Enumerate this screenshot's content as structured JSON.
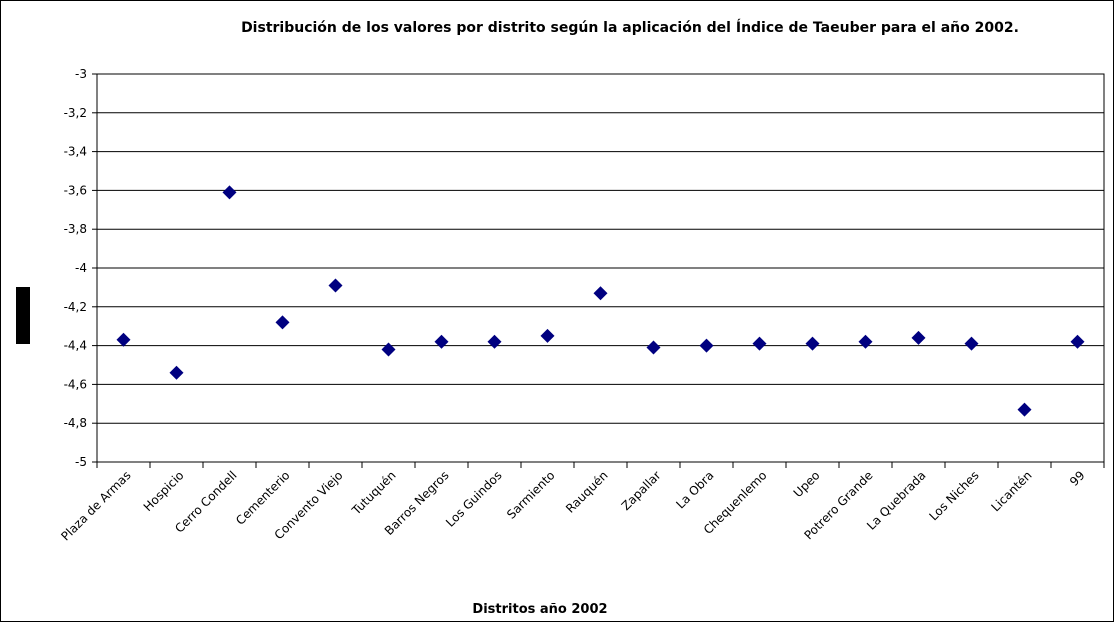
{
  "chart_data": {
    "type": "scatter",
    "title": "Distribución de los valores por distrito según la aplicación del Índice de Taeuber para el año 2002.",
    "xlabel": "Distritos año 2002",
    "categories": [
      "Plaza de Armas",
      "Hospicio",
      "Cerro Condell",
      "Cementerio",
      "Convento Viejo",
      "Tutuquén",
      "Barros Negros",
      "Los Guindos",
      "Sarmiento",
      "Rauquén",
      "Zapallar",
      "La Obra",
      "Chequenlemo",
      "Upeo",
      "Potrero Grande",
      "La Quebrada",
      "Los Niches",
      "Licantén",
      "99"
    ],
    "values": [
      -4.37,
      -4.54,
      -3.61,
      -4.28,
      -4.09,
      -4.42,
      -4.38,
      -4.38,
      -4.35,
      -4.13,
      -4.41,
      -4.4,
      -4.39,
      -4.39,
      -4.38,
      -4.36,
      -4.39,
      -4.73,
      -4.38
    ],
    "color": "#000080",
    "ylim": [
      -5,
      -3
    ],
    "yticks": [
      -5,
      {
        "value": -4.8,
        "label": "-4,8"
      },
      {
        "value": -4.6,
        "label": "-4,6"
      },
      {
        "value": -4.4,
        "label": "-4,4"
      },
      {
        "value": -4.2,
        "label": "-4,2"
      },
      -4,
      {
        "value": -3.8,
        "label": "-3,8"
      },
      {
        "value": -3.6,
        "label": "-3,6"
      },
      {
        "value": -3.4,
        "label": "-3,4"
      },
      {
        "value": -3.2,
        "label": "-3,2"
      },
      -3
    ],
    "grid": true
  }
}
